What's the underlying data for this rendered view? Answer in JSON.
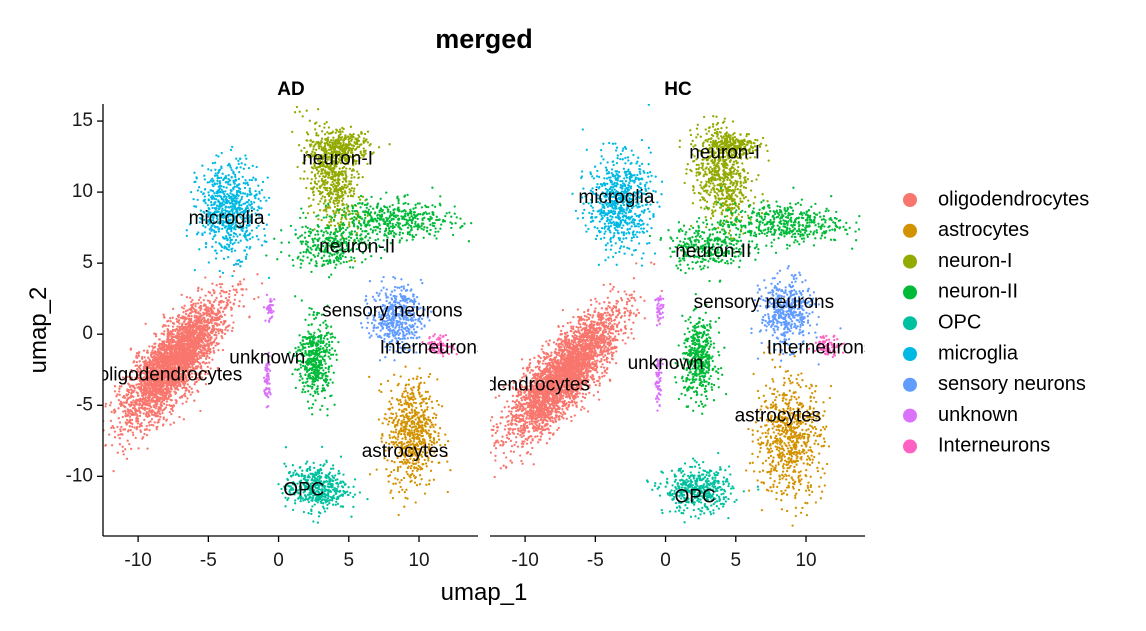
{
  "chart_data": {
    "type": "scatter",
    "title": "merged",
    "xlabel": "umap_1",
    "ylabel": "umap_2",
    "xlim": [
      -12.5,
      14.2
    ],
    "ylim": [
      -14.2,
      16.2
    ],
    "xticks": [
      -10,
      -5,
      0,
      5,
      10
    ],
    "yticks": [
      15,
      10,
      5,
      0,
      -5,
      -10
    ],
    "grid": false,
    "legend_position": "right",
    "panels": [
      "AD",
      "HC"
    ],
    "series": [
      {
        "name": "oligodendrocytes",
        "color": "#F8766D"
      },
      {
        "name": "astrocytes",
        "color": "#D39200"
      },
      {
        "name": "neuron-I",
        "color": "#93AA00"
      },
      {
        "name": "neuron-II",
        "color": "#00BA38"
      },
      {
        "name": "OPC",
        "color": "#00C19F"
      },
      {
        "name": "microglia",
        "color": "#00B9E3"
      },
      {
        "name": "sensory neurons",
        "color": "#619CFF"
      },
      {
        "name": "unknown",
        "color": "#DB72FB"
      },
      {
        "name": "Interneurons",
        "color": "#FF61C3"
      }
    ],
    "cluster_labels": [
      [
        {
          "text": "neuron-I",
          "x": 4.2,
          "y": 12.3
        },
        {
          "text": "microglia",
          "x": -3.7,
          "y": 8.1
        },
        {
          "text": "neuron-II",
          "x": 5.6,
          "y": 6.1
        },
        {
          "text": "sensory neurons",
          "x": 8.1,
          "y": 1.6
        },
        {
          "text": "Interneurons",
          "x": 11.0,
          "y": -1.0
        },
        {
          "text": "unknown",
          "x": -0.8,
          "y": -1.7
        },
        {
          "text": "oligodendrocytes",
          "x": -7.7,
          "y": -2.9
        },
        {
          "text": "astrocytes",
          "x": 9.0,
          "y": -8.3
        },
        {
          "text": "OPC",
          "x": 1.8,
          "y": -11.0
        }
      ],
      [
        {
          "text": "neuron-I",
          "x": 4.2,
          "y": 12.7
        },
        {
          "text": "microglia",
          "x": -3.5,
          "y": 9.6
        },
        {
          "text": "neuron-II",
          "x": 3.4,
          "y": 5.8
        },
        {
          "text": "sensory neurons",
          "x": 7.0,
          "y": 2.2
        },
        {
          "text": "Interneurons",
          "x": 11.0,
          "y": -1.0
        },
        {
          "text": "unknown",
          "x": 0.0,
          "y": -2.1
        },
        {
          "text": "oligodendrocytes",
          "x": -10.5,
          "y": -3.6
        },
        {
          "text": "astrocytes",
          "x": 8.0,
          "y": -5.8
        },
        {
          "text": "OPC",
          "x": 2.1,
          "y": -11.5
        }
      ]
    ],
    "clusters": [
      [
        {
          "series": 0,
          "x": -7.5,
          "y": -2.0,
          "sx": 2.6,
          "sy": 0.9,
          "rot": 52,
          "n": 3200
        },
        {
          "series": 5,
          "x": -3.5,
          "y": 8.8,
          "sx": 1.1,
          "sy": 1.6,
          "rot": 0,
          "n": 700
        },
        {
          "series": 2,
          "x": 3.8,
          "y": 11.0,
          "sx": 0.9,
          "sy": 1.8,
          "rot": 15,
          "n": 600
        },
        {
          "series": 2,
          "x": 4.7,
          "y": 13.2,
          "sx": 0.9,
          "sy": 0.5,
          "rot": 0,
          "n": 250
        },
        {
          "series": 3,
          "x": 8.3,
          "y": 8.0,
          "sx": 2.2,
          "sy": 0.7,
          "rot": 0,
          "n": 450
        },
        {
          "series": 3,
          "x": 3.5,
          "y": 6.3,
          "sx": 1.4,
          "sy": 0.8,
          "rot": 0,
          "n": 300
        },
        {
          "series": 3,
          "x": 2.6,
          "y": -1.8,
          "sx": 0.6,
          "sy": 1.4,
          "rot": 0,
          "n": 450
        },
        {
          "series": 6,
          "x": 8.4,
          "y": 1.2,
          "sx": 0.9,
          "sy": 1.1,
          "rot": 0,
          "n": 450
        },
        {
          "series": 8,
          "x": 11.5,
          "y": -0.8,
          "sx": 0.5,
          "sy": 0.35,
          "rot": 0,
          "n": 80
        },
        {
          "series": 7,
          "x": -0.6,
          "y": 1.8,
          "sx": 0.15,
          "sy": 0.5,
          "rot": 0,
          "n": 40
        },
        {
          "series": 7,
          "x": -0.8,
          "y": -3.2,
          "sx": 0.12,
          "sy": 0.8,
          "rot": 0,
          "n": 60
        },
        {
          "series": 1,
          "x": 9.5,
          "y": -7.0,
          "sx": 0.9,
          "sy": 1.9,
          "rot": 0,
          "n": 650
        },
        {
          "series": 4,
          "x": 2.7,
          "y": -10.8,
          "sx": 1.1,
          "sy": 0.8,
          "rot": 0,
          "n": 450
        }
      ],
      [
        {
          "series": 0,
          "x": -7.2,
          "y": -2.8,
          "sx": 2.8,
          "sy": 0.9,
          "rot": 50,
          "n": 3200
        },
        {
          "series": 5,
          "x": -3.3,
          "y": 9.3,
          "sx": 1.1,
          "sy": 1.6,
          "rot": 0,
          "n": 700
        },
        {
          "series": 2,
          "x": 4.0,
          "y": 11.0,
          "sx": 0.9,
          "sy": 1.8,
          "rot": 15,
          "n": 600
        },
        {
          "series": 2,
          "x": 4.8,
          "y": 13.3,
          "sx": 0.9,
          "sy": 0.5,
          "rot": 0,
          "n": 250
        },
        {
          "series": 3,
          "x": 8.3,
          "y": 7.8,
          "sx": 2.2,
          "sy": 0.7,
          "rot": 0,
          "n": 450
        },
        {
          "series": 3,
          "x": 3.0,
          "y": 6.2,
          "sx": 1.4,
          "sy": 0.8,
          "rot": 0,
          "n": 300
        },
        {
          "series": 3,
          "x": 2.4,
          "y": -1.8,
          "sx": 0.6,
          "sy": 1.4,
          "rot": 0,
          "n": 450
        },
        {
          "series": 6,
          "x": 8.6,
          "y": 1.5,
          "sx": 0.9,
          "sy": 1.2,
          "rot": 0,
          "n": 450
        },
        {
          "series": 8,
          "x": 11.5,
          "y": -0.8,
          "sx": 0.5,
          "sy": 0.35,
          "rot": 0,
          "n": 80
        },
        {
          "series": 7,
          "x": -0.4,
          "y": 1.8,
          "sx": 0.15,
          "sy": 0.5,
          "rot": 0,
          "n": 40
        },
        {
          "series": 7,
          "x": -0.5,
          "y": -3.2,
          "sx": 0.12,
          "sy": 0.8,
          "rot": 0,
          "n": 60
        },
        {
          "series": 1,
          "x": 8.8,
          "y": -7.3,
          "sx": 1.2,
          "sy": 2.1,
          "rot": 0,
          "n": 700
        },
        {
          "series": 4,
          "x": 2.3,
          "y": -11.0,
          "sx": 1.2,
          "sy": 0.8,
          "rot": 0,
          "n": 450
        }
      ]
    ]
  }
}
